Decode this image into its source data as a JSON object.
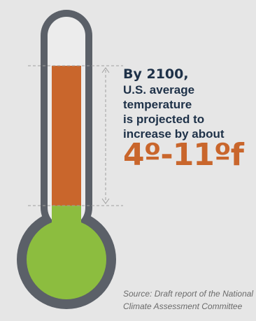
{
  "callout": {
    "headline": "By 2100,",
    "lines": [
      "U.S. average",
      "temperature",
      "is projected to",
      "increase by about"
    ],
    "range": "4º-11ºf"
  },
  "source": {
    "lines": [
      "Source: Draft report of the National",
      "Climate Assessment Committee"
    ]
  },
  "thermometer": {
    "increase_fraction": 0.5,
    "colors": {
      "outline": "#5b6068",
      "tube": "#ececec",
      "increase": "#c9662c",
      "baseline": "#8cbd3f",
      "bracket": "#a0a0a0",
      "headline_text": "#1e3148",
      "range_text": "#c9662c"
    }
  }
}
